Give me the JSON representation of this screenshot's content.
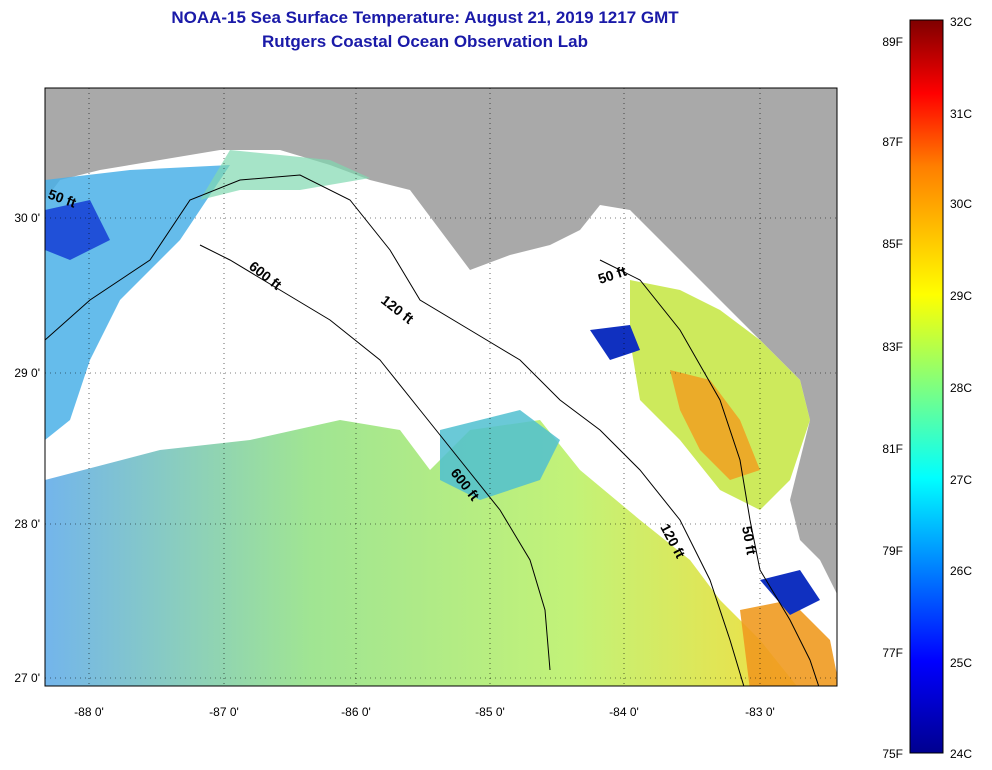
{
  "title": {
    "line1": "NOAA-15 Sea Surface Temperature:  August 21, 2019 1217 GMT",
    "line2": "Rutgers Coastal Ocean Observation Lab"
  },
  "map": {
    "lon_ticks": [
      "-88 0'",
      "-87 0'",
      "-86 0'",
      "-85 0'",
      "-84 0'",
      "-83 0'"
    ],
    "lat_ticks": [
      "30 0'",
      "29 0'",
      "28 0'",
      "27 0'"
    ],
    "contour_labels": [
      "50 ft",
      "600 ft",
      "120 ft",
      "50 ft",
      "600 ft",
      "120 ft",
      "50 ft"
    ],
    "land_color": "#a9a9a9",
    "cloud_color": "#ffffff"
  },
  "colorbar": {
    "fahrenheit": [
      "89F",
      "87F",
      "85F",
      "83F",
      "81F",
      "79F",
      "77F",
      "75F"
    ],
    "celsius": [
      "32C",
      "31C",
      "30C",
      "29C",
      "28C",
      "27C",
      "26C",
      "25C",
      "24C"
    ],
    "colors": [
      "#00008f",
      "#0000ff",
      "#007fff",
      "#00ffff",
      "#7fff7f",
      "#ffff00",
      "#ff7f00",
      "#ff0000",
      "#7f0000"
    ]
  }
}
